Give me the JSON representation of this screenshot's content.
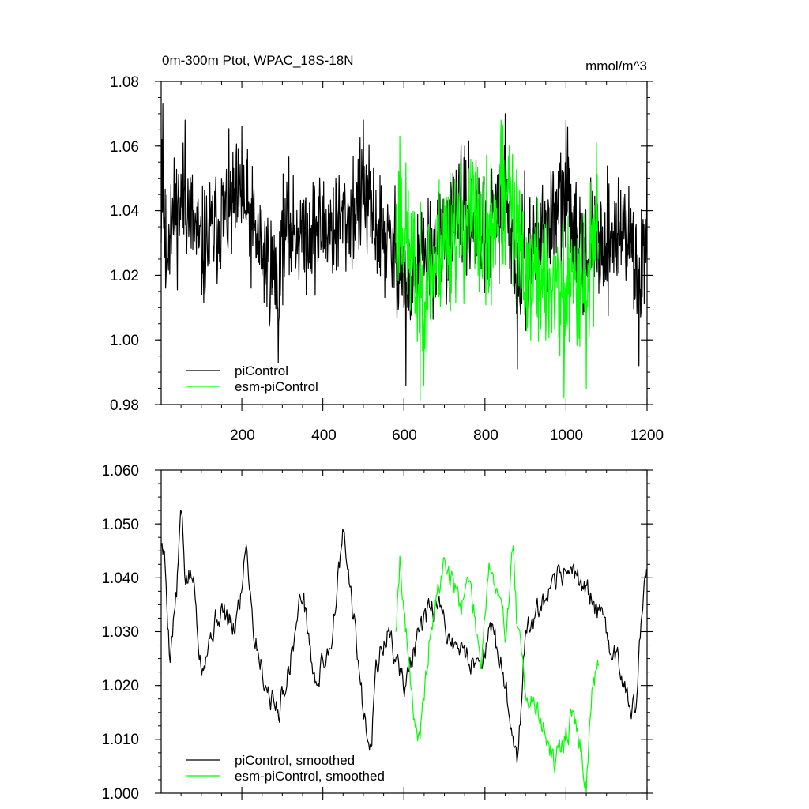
{
  "chart_data": [
    {
      "type": "line",
      "title": "0m-300m Ptot, WPAC_18S-18N",
      "units": "mmol/m^3",
      "xlim": [
        1,
        1200
      ],
      "ylim": [
        0.98,
        1.08
      ],
      "y_ticks": [
        "1.08",
        "1.06",
        "1.04",
        "1.02",
        "1.00",
        "0.98"
      ],
      "x_ticks": [
        "200",
        "400",
        "600",
        "800",
        "1000",
        "1200"
      ],
      "legend_position": "bottom-left",
      "grid": false,
      "series": [
        {
          "name": "piControl",
          "color": "#000000",
          "x_start": 1,
          "x_end": 1200,
          "mean": 1.031,
          "spread": 0.009,
          "min": 0.986,
          "max": 1.073,
          "seed": 11,
          "anchors": [
            [
              1,
              1.03
            ],
            [
              3,
              1.062
            ],
            [
              5,
              1.073
            ],
            [
              12,
              1.016
            ],
            [
              25,
              1.048
            ],
            [
              60,
              1.068
            ],
            [
              100,
              1.02
            ],
            [
              150,
              1.05
            ],
            [
              200,
              1.066
            ],
            [
              250,
              1.02
            ],
            [
              290,
              0.993
            ],
            [
              300,
              1.04
            ],
            [
              350,
              1.038
            ],
            [
              400,
              1.04
            ],
            [
              450,
              1.045
            ],
            [
              500,
              1.068
            ],
            [
              550,
              1.03
            ],
            [
              600,
              1.01
            ],
            [
              605,
              0.986
            ],
            [
              650,
              1.02
            ],
            [
              700,
              1.025
            ],
            [
              750,
              1.06
            ],
            [
              800,
              1.03
            ],
            [
              850,
              1.07
            ],
            [
              880,
              0.991
            ],
            [
              900,
              1.02
            ],
            [
              950,
              1.04
            ],
            [
              1000,
              1.068
            ],
            [
              1050,
              1.02
            ],
            [
              1100,
              1.03
            ],
            [
              1150,
              1.04
            ],
            [
              1180,
              0.992
            ],
            [
              1200,
              1.06
            ]
          ]
        },
        {
          "name": "esm-piControl",
          "color": "#00ff00",
          "x_start": 580,
          "x_end": 1080,
          "mean": 1.028,
          "spread": 0.011,
          "min": 0.981,
          "max": 1.068,
          "seed": 23,
          "anchors": [
            [
              580,
              1.03
            ],
            [
              590,
              1.063
            ],
            [
              640,
              0.981
            ],
            [
              700,
              1.04
            ],
            [
              770,
              1.055
            ],
            [
              800,
              1.03
            ],
            [
              840,
              1.068
            ],
            [
              860,
              1.06
            ],
            [
              900,
              1.01
            ],
            [
              950,
              1.0
            ],
            [
              985,
              0.995
            ],
            [
              995,
              0.982
            ],
            [
              1040,
              1.02
            ],
            [
              1050,
              0.985
            ],
            [
              1075,
              1.061
            ],
            [
              1080,
              1.03
            ]
          ]
        }
      ]
    },
    {
      "type": "line",
      "xlim": [
        1,
        1200
      ],
      "ylim": [
        1.0,
        1.06
      ],
      "y_ticks": [
        "1.060",
        "1.050",
        "1.040",
        "1.030",
        "1.020",
        "1.010",
        "1.000"
      ],
      "x_ticks": [],
      "legend_position": "bottom-left",
      "grid": false,
      "series": [
        {
          "name": "piControl, smoothed",
          "color": "#000000",
          "x_start": 1,
          "x_end": 1200,
          "seed": 5,
          "anchors": [
            [
              1,
              1.047
            ],
            [
              10,
              1.043
            ],
            [
              22,
              1.026
            ],
            [
              40,
              1.038
            ],
            [
              50,
              1.053
            ],
            [
              60,
              1.04
            ],
            [
              80,
              1.04
            ],
            [
              100,
              1.024
            ],
            [
              130,
              1.031
            ],
            [
              150,
              1.034
            ],
            [
              180,
              1.03
            ],
            [
              200,
              1.038
            ],
            [
              210,
              1.048
            ],
            [
              230,
              1.03
            ],
            [
              260,
              1.02
            ],
            [
              290,
              1.015
            ],
            [
              320,
              1.025
            ],
            [
              350,
              1.038
            ],
            [
              380,
              1.02
            ],
            [
              420,
              1.028
            ],
            [
              450,
              1.048
            ],
            [
              480,
              1.03
            ],
            [
              500,
              1.015
            ],
            [
              520,
              1.01
            ],
            [
              530,
              1.023
            ],
            [
              560,
              1.03
            ],
            [
              600,
              1.02
            ],
            [
              640,
              1.03
            ],
            [
              680,
              1.035
            ],
            [
              720,
              1.028
            ],
            [
              780,
              1.024
            ],
            [
              820,
              1.03
            ],
            [
              850,
              1.02
            ],
            [
              880,
              1.006
            ],
            [
              900,
              1.03
            ],
            [
              950,
              1.035
            ],
            [
              1000,
              1.042
            ],
            [
              1050,
              1.038
            ],
            [
              1100,
              1.03
            ],
            [
              1150,
              1.02
            ],
            [
              1170,
              1.015
            ],
            [
              1185,
              1.03
            ],
            [
              1200,
              1.043
            ]
          ]
        },
        {
          "name": "esm-piControl, smoothed",
          "color": "#00ff00",
          "x_start": 580,
          "x_end": 1080,
          "seed": 19,
          "anchors": [
            [
              580,
              1.031
            ],
            [
              590,
              1.044
            ],
            [
              605,
              1.03
            ],
            [
              625,
              1.015
            ],
            [
              640,
              1.009
            ],
            [
              665,
              1.03
            ],
            [
              700,
              1.043
            ],
            [
              740,
              1.035
            ],
            [
              760,
              1.04
            ],
            [
              790,
              1.025
            ],
            [
              810,
              1.043
            ],
            [
              850,
              1.03
            ],
            [
              870,
              1.046
            ],
            [
              880,
              1.03
            ],
            [
              900,
              1.02
            ],
            [
              940,
              1.013
            ],
            [
              975,
              1.005
            ],
            [
              995,
              1.01
            ],
            [
              1020,
              1.015
            ],
            [
              1050,
              1.002
            ],
            [
              1065,
              1.02
            ],
            [
              1080,
              1.022
            ]
          ]
        }
      ]
    }
  ]
}
